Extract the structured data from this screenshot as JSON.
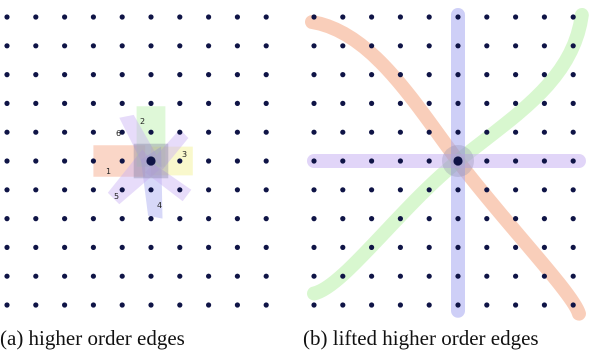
{
  "panels": [
    {
      "id": "a",
      "caption": "(a) higher order edges",
      "edge_labels": [
        "1",
        "2",
        "3",
        "4",
        "5",
        "6"
      ]
    },
    {
      "id": "b",
      "caption": "(b) lifted higher order edges"
    }
  ],
  "colors": {
    "node": "#0f1446",
    "edge_red": "#f4a582",
    "edge_green": "#b8f0a8",
    "edge_blue": "#a6a8f0",
    "edge_purple": "#c9b2f3",
    "edge_yellow": "#f2f08f"
  }
}
